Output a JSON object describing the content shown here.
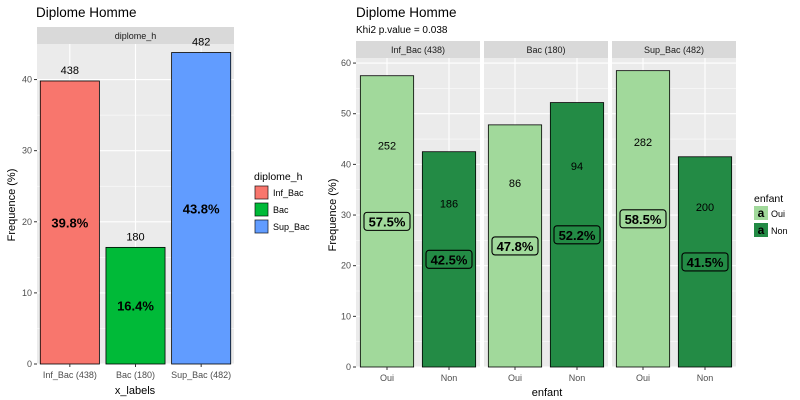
{
  "chart_data": [
    {
      "type": "bar",
      "title": "Diplome Homme",
      "facet_strip": "diplome_h",
      "xlabel": "x_labels",
      "ylabel": "Frequence (%)",
      "ylim": [
        0,
        45
      ],
      "yticks": [
        0,
        10,
        20,
        30,
        40
      ],
      "categories": [
        "Inf_Bac (438)",
        "Bac (180)",
        "Sup_Bac (482)"
      ],
      "values": [
        39.8,
        16.4,
        43.8
      ],
      "counts": [
        "438",
        "180",
        "482"
      ],
      "percent_labels": [
        "39.8%",
        "16.4%",
        "43.8%"
      ],
      "colors": [
        "#F8766D",
        "#00BA38",
        "#619CFF"
      ],
      "legend": {
        "title": "diplome_h",
        "position": "right",
        "entries": [
          "Inf_Bac",
          "Bac",
          "Sup_Bac"
        ]
      },
      "grid": true
    },
    {
      "type": "bar",
      "title": "Diplome Homme",
      "subtitle": "Khi2 p.value = 0.038",
      "xlabel": "enfant",
      "ylabel": "Frequence (%)",
      "ylim": [
        0,
        61
      ],
      "yticks": [
        0,
        10,
        20,
        30,
        40,
        50,
        60
      ],
      "categories": [
        "Oui",
        "Non"
      ],
      "colors": [
        "#A1D99B",
        "#238B45"
      ],
      "facets": [
        {
          "label": "Inf_Bac (438)",
          "values": [
            57.5,
            42.5
          ],
          "counts": [
            "252",
            "186"
          ],
          "percent_labels": [
            "57.5%",
            "42.5%"
          ]
        },
        {
          "label": "Bac (180)",
          "values": [
            47.8,
            52.2
          ],
          "counts": [
            "86",
            "94"
          ],
          "percent_labels": [
            "47.8%",
            "52.2%"
          ]
        },
        {
          "label": "Sup_Bac (482)",
          "values": [
            58.5,
            41.5
          ],
          "counts": [
            "282",
            "200"
          ],
          "percent_labels": [
            "58.5%",
            "41.5%"
          ]
        }
      ],
      "legend": {
        "title": "enfant",
        "position": "right",
        "key_glyph": "a",
        "entries": [
          "Oui",
          "Non"
        ]
      },
      "grid": true
    }
  ]
}
